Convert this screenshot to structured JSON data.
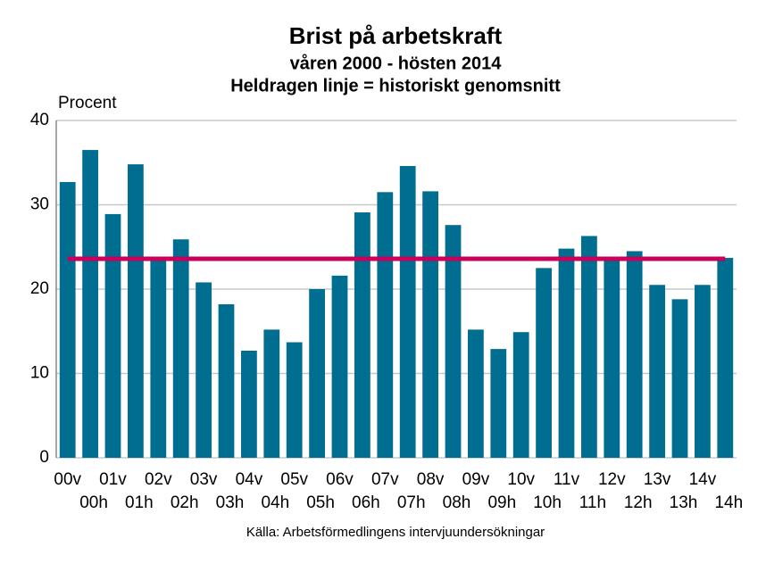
{
  "chart_data": {
    "type": "bar",
    "title": "Brist på arbetskraft",
    "subtitle": "våren 2000 - hösten 2014",
    "subtitle2": "Heldragen linje = historiskt genomsnitt",
    "y_label": "Procent",
    "source": "Källa: Arbetsförmedlingens intervjuundersökningar",
    "categories": [
      "00v",
      "00h",
      "01v",
      "01h",
      "02v",
      "02h",
      "03v",
      "03h",
      "04v",
      "04h",
      "05v",
      "05h",
      "06v",
      "06h",
      "07v",
      "07h",
      "08v",
      "08h",
      "09v",
      "09h",
      "10v",
      "10h",
      "11v",
      "11h",
      "12v",
      "12h",
      "13v",
      "13h",
      "14v",
      "14h"
    ],
    "values": [
      32.7,
      36.5,
      28.9,
      34.8,
      23.6,
      25.9,
      20.8,
      18.2,
      12.7,
      15.2,
      13.7,
      20.0,
      21.6,
      29.1,
      31.5,
      34.6,
      31.6,
      27.6,
      15.2,
      12.9,
      14.9,
      22.5,
      24.8,
      26.3,
      23.6,
      24.5,
      20.5,
      18.8,
      20.5,
      23.7
    ],
    "color": "#006e91",
    "reference_line": {
      "value": 23.6,
      "color": "#c8005a"
    },
    "ylim": [
      0,
      40
    ],
    "yticks": [
      0,
      10,
      20,
      30,
      40
    ],
    "grid": true
  }
}
